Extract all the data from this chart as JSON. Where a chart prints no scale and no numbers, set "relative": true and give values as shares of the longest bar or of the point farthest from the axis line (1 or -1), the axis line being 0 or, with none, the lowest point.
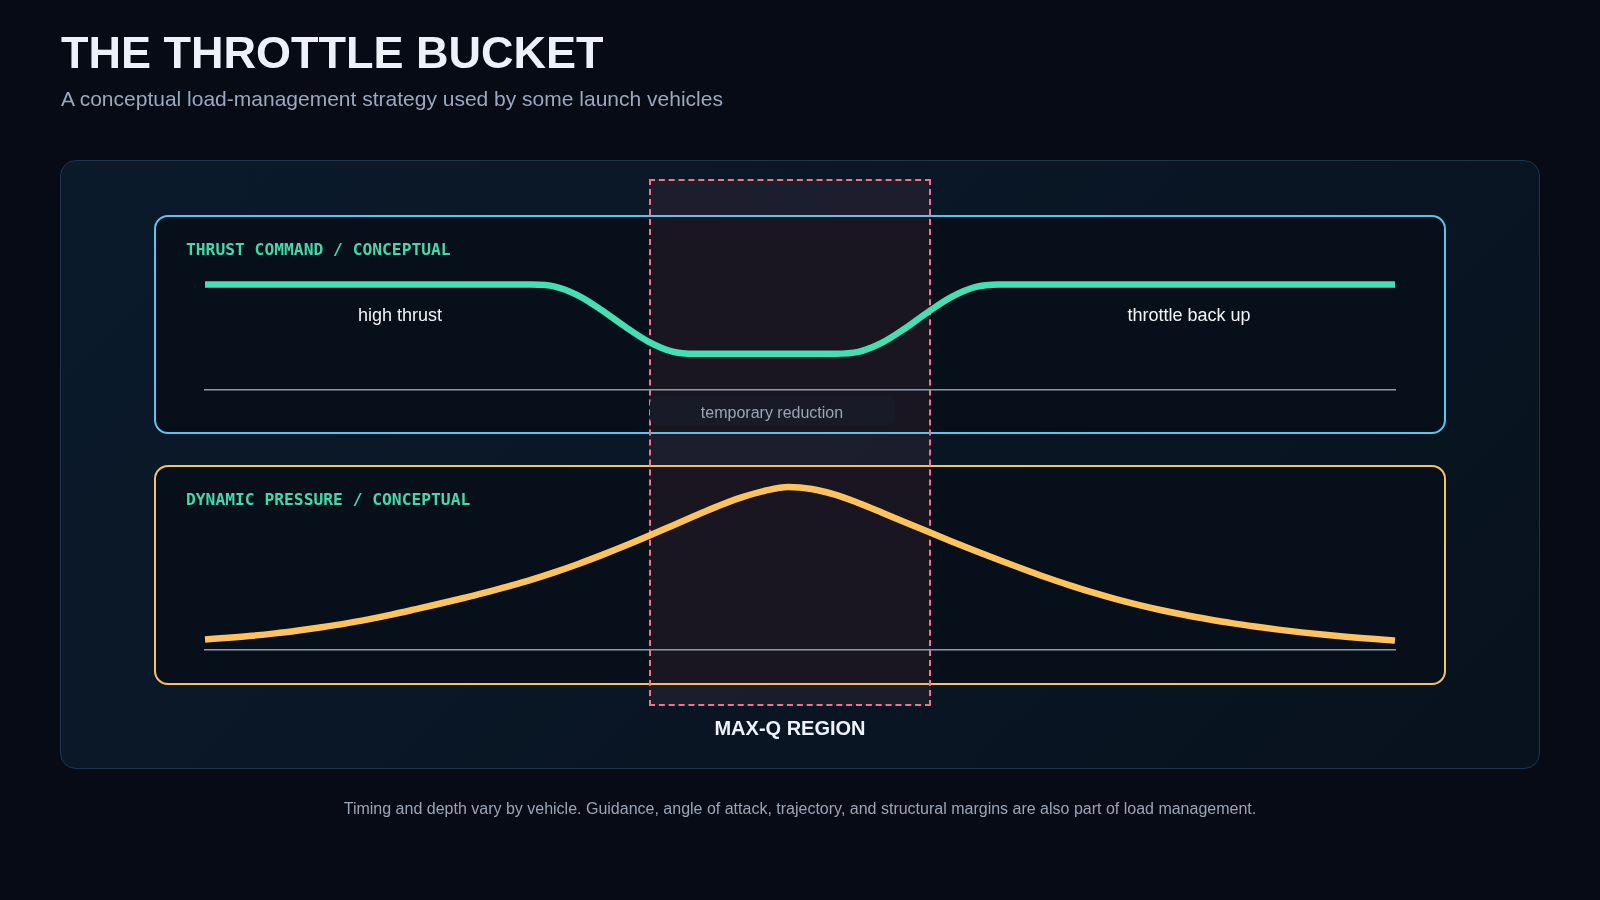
{
  "chart_data": [
    {
      "type": "other",
      "title": "THE THROTTLE BUCKET",
      "subtitle": "A conceptual load-management strategy used by some launch vehicles",
      "annotations": [
        "Timing and depth vary by vehicle. Guidance, angle of attack, trajectory, and structural margins are also part of load management."
      ]
    },
    {
      "type": "line",
      "title": "THRUST COMMAND / CONCEPTUAL",
      "relative": true,
      "categories": [
        null,
        null,
        null,
        null,
        null,
        null,
        null,
        null,
        null,
        null,
        null,
        null,
        null,
        null,
        null,
        null,
        null,
        null,
        null,
        null,
        null,
        null,
        null,
        null,
        null,
        null,
        null,
        null,
        null,
        null,
        null,
        null,
        null,
        null,
        null,
        null,
        null,
        null,
        null,
        null,
        null,
        null,
        null,
        null,
        null,
        null,
        null,
        null,
        null,
        null,
        null,
        null
      ],
      "series": [
        {
          "color": "#45dfb3",
          "values": [
            1,
            1,
            1,
            1,
            1,
            1,
            1,
            1,
            1,
            1,
            1,
            1,
            1,
            1,
            1,
            0.981,
            0.895,
            0.757,
            0.599,
            0.457,
            0.364,
            0.34,
            0.34,
            0.34,
            0.34,
            0.34,
            0.34,
            0.34,
            0.358,
            0.444,
            0.582,
            0.74,
            0.882,
            0.975,
            1,
            1,
            1,
            1,
            1,
            1,
            1,
            1,
            1,
            1,
            1,
            1,
            1,
            1,
            1,
            1,
            1,
            1
          ]
        }
      ],
      "annotations": [
        "high thrust",
        "throttle back up",
        "temporary reduction"
      ]
    },
    {
      "type": "line",
      "title": "DYNAMIC PRESSURE / CONCEPTUAL",
      "relative": true,
      "categories": [
        null,
        null,
        null,
        null,
        null,
        null,
        null,
        null,
        null,
        null,
        null,
        null,
        null,
        null,
        null,
        null,
        null,
        null,
        null,
        null,
        null,
        null,
        null,
        null,
        null,
        null,
        null,
        null,
        null,
        null,
        null,
        null,
        null,
        null,
        null,
        null,
        null,
        null,
        null,
        null,
        null,
        null,
        null,
        null,
        null,
        null,
        null,
        null,
        null,
        null,
        null,
        null
      ],
      "series": [
        {
          "color": "#ffc35e",
          "values": [
            0.065,
            0.075,
            0.087,
            0.102,
            0.12,
            0.14,
            0.162,
            0.188,
            0.217,
            0.249,
            0.282,
            0.316,
            0.352,
            0.391,
            0.432,
            0.478,
            0.528,
            0.582,
            0.639,
            0.699,
            0.761,
            0.823,
            0.883,
            0.936,
            0.977,
            1,
            0.988,
            0.953,
            0.902,
            0.844,
            0.784,
            0.725,
            0.666,
            0.609,
            0.554,
            0.5,
            0.448,
            0.4,
            0.355,
            0.314,
            0.277,
            0.244,
            0.215,
            0.189,
            0.165,
            0.144,
            0.125,
            0.108,
            0.093,
            0.08,
            0.069,
            0.058
          ]
        }
      ],
      "annotations": [
        "MAX-Q REGION"
      ]
    }
  ]
}
